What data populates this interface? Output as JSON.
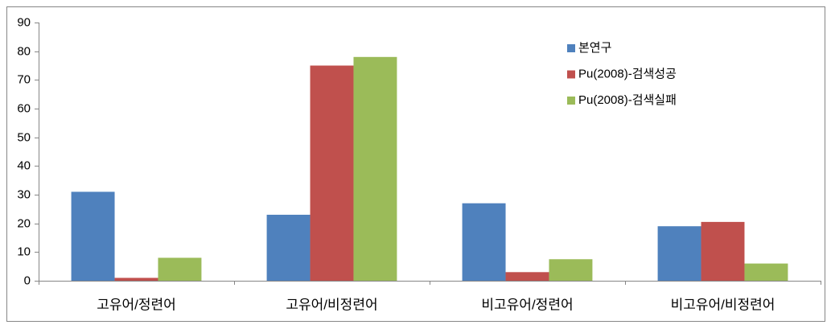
{
  "chart_data": {
    "type": "bar",
    "categories": [
      "고유어/정련어",
      "고유어/비정련어",
      "비고유어/정련어",
      "비고유어/비정련어"
    ],
    "series": [
      {
        "name": "본연구",
        "color": "#4f81bd",
        "values": [
          31,
          23,
          27,
          19
        ]
      },
      {
        "name": "Pu(2008)-검색성공",
        "color": "#c0504d",
        "values": [
          1,
          75,
          3,
          20.5
        ]
      },
      {
        "name": "Pu(2008)-검색실패",
        "color": "#9bbb59",
        "values": [
          8,
          78,
          7.5,
          6
        ]
      }
    ],
    "ylim": [
      0,
      90
    ],
    "yticks": [
      0,
      10,
      20,
      30,
      40,
      50,
      60,
      70,
      80,
      90
    ],
    "grid": false,
    "legend": "upper-right"
  }
}
